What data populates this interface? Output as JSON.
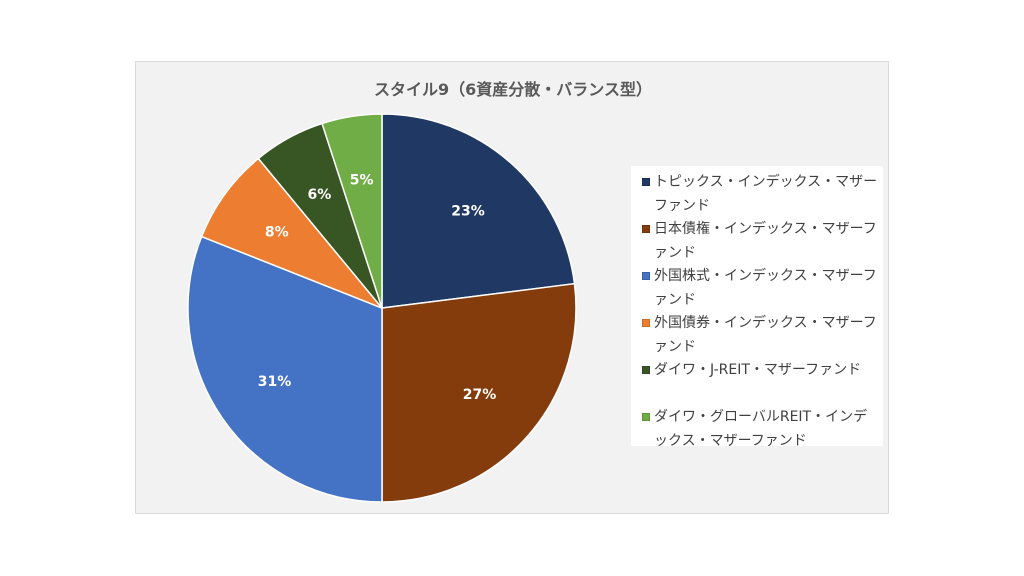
{
  "chart_data": {
    "type": "pie",
    "title": "スタイル9（6資産分散・バランス型）",
    "slices": [
      {
        "label": "トピックス・インデックス・マザーファンド",
        "value": 23,
        "display": "23%",
        "color": "#1f3864"
      },
      {
        "label": "日本債権・インデックス・マザーファンド",
        "value": 27,
        "display": "27%",
        "color": "#843c0c"
      },
      {
        "label": "外国株式・インデックス・マザーファンド",
        "value": 31,
        "display": "31%",
        "color": "#4472c4"
      },
      {
        "label": "外国債券・インデックス・マザーファンド",
        "value": 8,
        "display": "8%",
        "color": "#ed7d31"
      },
      {
        "label": "ダイワ・J-REIT・マザーファンド",
        "value": 6,
        "display": "6%",
        "color": "#375623"
      },
      {
        "label": "ダイワ・グローバルREIT・インデックス・マザーファンド",
        "value": 5,
        "display": "5%",
        "color": "#70ad47"
      }
    ],
    "legend_position": "right",
    "start_angle": "12 o'clock",
    "direction": "clockwise"
  }
}
